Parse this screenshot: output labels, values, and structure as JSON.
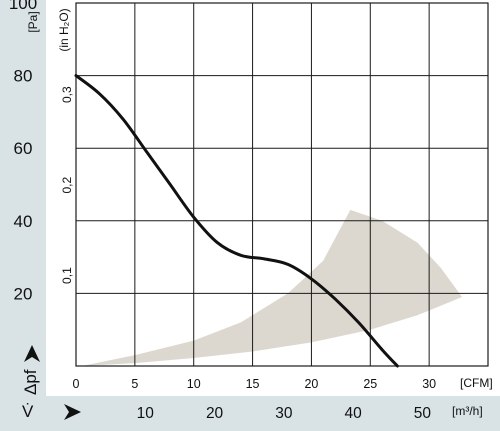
{
  "chart_data": {
    "type": "line",
    "title": "",
    "y_axis_pa": {
      "unit": "[Pa]",
      "ticks": [
        "20",
        "40",
        "60",
        "80",
        "100"
      ],
      "range": [
        0,
        100
      ]
    },
    "y_axis_inh2o": {
      "unit": "(in H₂O)",
      "ticks": [
        "0,1",
        "0,2",
        "0,3"
      ]
    },
    "x_axis_cfm": {
      "unit": "[CFM]",
      "ticks": [
        "0",
        "5",
        "10",
        "15",
        "20",
        "25",
        "30"
      ],
      "range": [
        0,
        35
      ]
    },
    "x_axis_m3h": {
      "unit": "[m³/h]",
      "ticks": [
        "10",
        "20",
        "30",
        "40",
        "50"
      ]
    },
    "y_symbol": "Δpf",
    "x_symbol": "V̇",
    "series": [
      {
        "x_cfm": [
          0,
          2,
          4,
          6,
          8,
          10,
          12,
          14,
          16,
          18,
          20,
          22,
          24,
          26,
          27.3
        ],
        "y_pa": [
          80,
          75,
          68,
          59,
          50,
          41,
          34,
          30.5,
          29.5,
          28,
          24,
          18.5,
          12,
          4.5,
          0
        ]
      }
    ],
    "operating_region": {
      "upper": [
        {
          "x_cfm": 0.5,
          "y_pa": 0
        },
        {
          "x_cfm": 5,
          "y_pa": 3
        },
        {
          "x_cfm": 10,
          "y_pa": 7
        },
        {
          "x_cfm": 14,
          "y_pa": 12
        },
        {
          "x_cfm": 18,
          "y_pa": 20
        },
        {
          "x_cfm": 21,
          "y_pa": 29
        },
        {
          "x_cfm": 23.3,
          "y_pa": 43
        },
        {
          "x_cfm": 26,
          "y_pa": 40
        },
        {
          "x_cfm": 29,
          "y_pa": 34
        },
        {
          "x_cfm": 31,
          "y_pa": 27
        },
        {
          "x_cfm": 32.8,
          "y_pa": 19
        }
      ],
      "lower": [
        {
          "x_cfm": 32.8,
          "y_pa": 19
        },
        {
          "x_cfm": 29,
          "y_pa": 14
        },
        {
          "x_cfm": 25,
          "y_pa": 10
        },
        {
          "x_cfm": 20,
          "y_pa": 6.5
        },
        {
          "x_cfm": 15,
          "y_pa": 4
        },
        {
          "x_cfm": 10,
          "y_pa": 2.2
        },
        {
          "x_cfm": 5,
          "y_pa": 0.8
        },
        {
          "x_cfm": 0.5,
          "y_pa": 0
        }
      ]
    },
    "grid": true,
    "legend": "none"
  }
}
